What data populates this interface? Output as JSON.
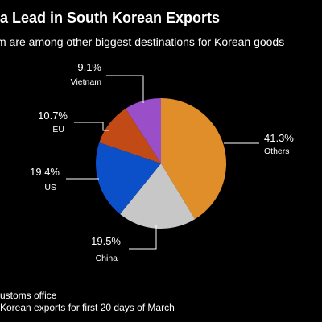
{
  "header": {
    "title": "ina Lead in South Korean Exports",
    "subtitle": "m are among other biggest destinations for Korean goods"
  },
  "footer": {
    "source": "ustoms office",
    "note": "Korean exports for first 20 days of March"
  },
  "colors": {
    "background": "#000000",
    "Others": "#E08E2A",
    "China": "#C7C7C7",
    "US": "#0B4FC9",
    "EU": "#C24A17",
    "Vietnam": "#9A4FC8"
  },
  "chart_data": {
    "type": "pie",
    "slices": [
      {
        "label": "Others",
        "value": 41.3,
        "display": "41.3%"
      },
      {
        "label": "China",
        "value": 19.5,
        "display": "19.5%"
      },
      {
        "label": "US",
        "value": 19.4,
        "display": "19.4%"
      },
      {
        "label": "EU",
        "value": 10.7,
        "display": "10.7%"
      },
      {
        "label": "Vietnam",
        "value": 9.1,
        "display": "9.1%"
      }
    ],
    "start": "12 o'clock",
    "direction": "clockwise"
  }
}
